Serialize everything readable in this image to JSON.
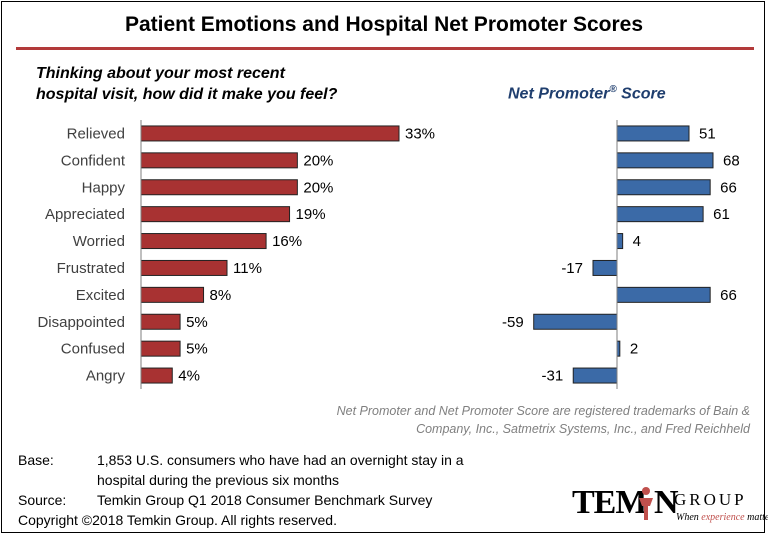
{
  "title": "Patient Emotions and Hospital Net Promoter Scores",
  "question": "Thinking about your most recent\nhospital visit, how did it make you feel?",
  "nps_title": "Net Promoter",
  "nps_title_mark": "®",
  "nps_title_suffix": " Score",
  "trademark_note": "Net Promoter and Net Promoter Score are registered trademarks of Bain & Company, Inc., Satmetrix Systems, Inc., and Fred Reichheld",
  "footer": {
    "base_label": "Base:",
    "base_text": "1,853 U.S. consumers who have had an overnight stay in a hospital during the previous six months",
    "source_label": "Source:",
    "source_text": "Temkin Group Q1 2018 Consumer Benchmark Survey",
    "copyright": "Copyright ©2018 Temkin Group. All rights reserved."
  },
  "logo": {
    "text_left": "TEM",
    "text_right": "N",
    "group": "GROUP",
    "tagline_a": "When ",
    "tagline_b": "experience",
    "tagline_c": " matters",
    "color": "#c0504d"
  },
  "colors": {
    "feeling_bar": "#a83232",
    "nps_bar": "#3b6aa7",
    "bar_stroke": "#222222",
    "rule": "#b23a3a"
  },
  "chart_data": [
    {
      "type": "bar",
      "orientation": "horizontal",
      "categories": [
        "Relieved",
        "Confident",
        "Happy",
        "Appreciated",
        "Worried",
        "Frustrated",
        "Excited",
        "Disappointed",
        "Confused",
        "Angry"
      ],
      "values": [
        33,
        20,
        20,
        19,
        16,
        11,
        8,
        5,
        5,
        4
      ],
      "value_labels": [
        "33%",
        "20%",
        "20%",
        "19%",
        "16%",
        "11%",
        "8%",
        "5%",
        "5%",
        "4%"
      ],
      "title": "Thinking about your most recent hospital visit, how did it make you feel?",
      "xlim": [
        0,
        40
      ]
    },
    {
      "type": "bar",
      "orientation": "horizontal",
      "categories": [
        "Relieved",
        "Confident",
        "Happy",
        "Appreciated",
        "Worried",
        "Frustrated",
        "Excited",
        "Disappointed",
        "Confused",
        "Angry"
      ],
      "values": [
        51,
        68,
        66,
        61,
        4,
        -17,
        66,
        -59,
        2,
        -31
      ],
      "value_labels": [
        "51",
        "68",
        "66",
        "61",
        "4",
        "-17",
        "66",
        "-59",
        "2",
        "-31"
      ],
      "title": "Net Promoter® Score",
      "xlim": [
        -60,
        70
      ]
    }
  ]
}
